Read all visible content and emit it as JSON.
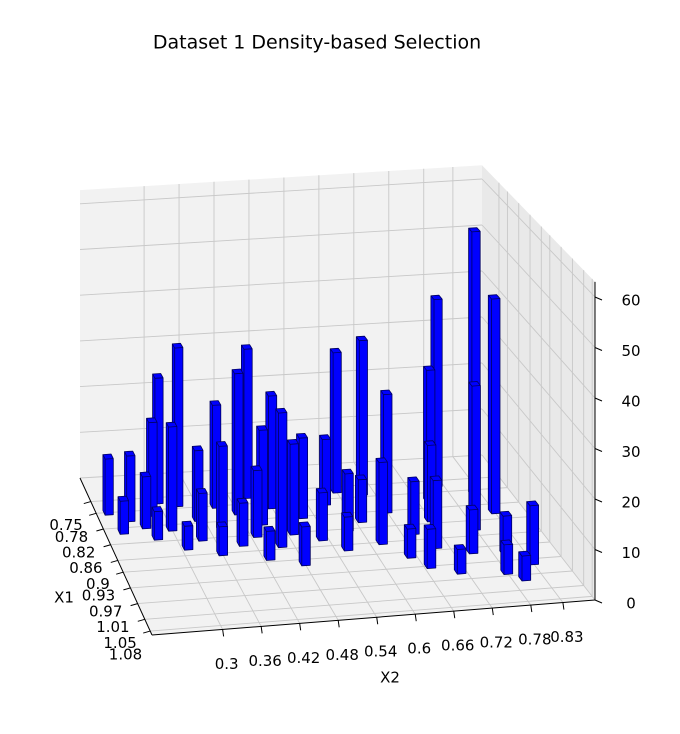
{
  "chart_data": {
    "type": "bar3d",
    "title": "Dataset 1 Density-based Selection",
    "xlabel": "X1",
    "ylabel": "X2",
    "xlim": [
      0.69,
      1.09
    ],
    "xticks": [
      0.75,
      0.78,
      0.82,
      0.86,
      0.9,
      0.93,
      0.97,
      1.01,
      1.05,
      1.08
    ],
    "ylim": [
      0.19,
      0.88
    ],
    "yticks": [
      0.3,
      0.36,
      0.42,
      0.48,
      0.54,
      0.6,
      0.66,
      0.72,
      0.78,
      0.83
    ],
    "zlim": [
      0,
      63
    ],
    "zticks": [
      0,
      10,
      20,
      30,
      40,
      50,
      60
    ],
    "color": "#0000ff",
    "edgecolor": "#000060",
    "grid": true,
    "x1": [
      0.78,
      0.8,
      0.83,
      0.82,
      0.85,
      0.79,
      0.76,
      0.83,
      0.88,
      0.77,
      0.86,
      0.81,
      0.9,
      0.84,
      0.78,
      0.88,
      0.8,
      0.86,
      0.92,
      0.76,
      0.83,
      0.89,
      0.79,
      0.86,
      0.94,
      0.82,
      0.88,
      0.91,
      0.79,
      0.86,
      0.76,
      0.84,
      0.9,
      0.77,
      0.82,
      0.94,
      0.88,
      0.97,
      0.92,
      0.85,
      0.99,
      0.8,
      0.94,
      0.76,
      0.88,
      1.0,
      0.95,
      0.79,
      0.84,
      0.98,
      1.02
    ],
    "x2": [
      0.21,
      0.24,
      0.22,
      0.26,
      0.27,
      0.28,
      0.3,
      0.3,
      0.31,
      0.33,
      0.34,
      0.35,
      0.36,
      0.38,
      0.39,
      0.4,
      0.42,
      0.43,
      0.43,
      0.45,
      0.45,
      0.46,
      0.48,
      0.49,
      0.48,
      0.52,
      0.53,
      0.56,
      0.57,
      0.58,
      0.6,
      0.61,
      0.62,
      0.64,
      0.66,
      0.65,
      0.68,
      0.67,
      0.7,
      0.72,
      0.71,
      0.74,
      0.75,
      0.77,
      0.78,
      0.78,
      0.8,
      0.82,
      0.83,
      0.83,
      0.8
    ],
    "values": [
      12,
      14,
      7,
      11,
      6,
      20,
      27,
      22,
      5,
      34,
      10,
      15,
      6,
      18,
      22,
      9,
      30,
      14,
      6,
      32,
      20,
      28,
      24,
      19,
      8,
      17,
      10,
      7,
      14,
      12,
      30,
      9,
      17,
      33,
      25,
      6,
      11,
      8,
      14,
      16,
      5,
      28,
      9,
      40,
      30,
      6,
      8,
      56,
      45,
      12,
      5
    ]
  }
}
